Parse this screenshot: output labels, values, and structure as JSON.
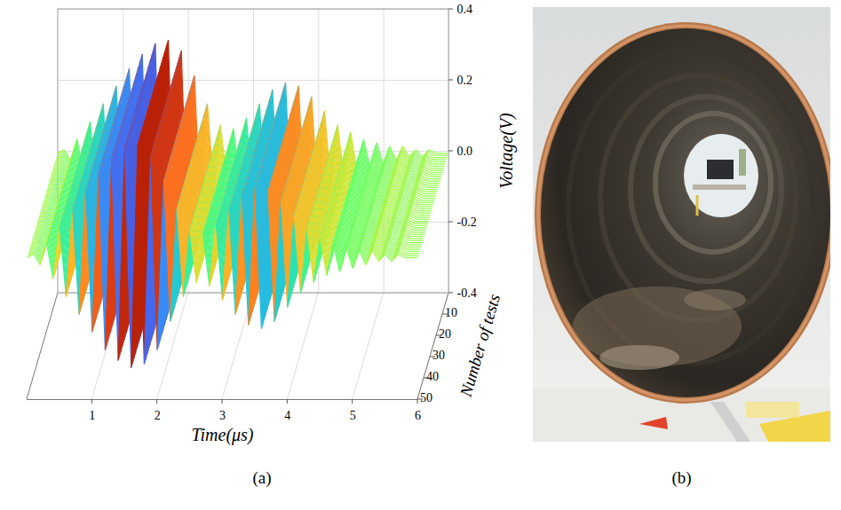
{
  "chart_data": {
    "type": "line",
    "panel_label": "(a)",
    "xlabel": "Time(μs)",
    "ylabel": "Voltage(V)",
    "zlabel": "Number of tests",
    "x": [
      0.0,
      0.1,
      0.2,
      0.3,
      0.4,
      0.5,
      0.6,
      0.7,
      0.8,
      0.9,
      1.0,
      1.1,
      1.2,
      1.3,
      1.4,
      1.5,
      1.6,
      1.7,
      1.8,
      1.9,
      2.0,
      2.1,
      2.2,
      2.3,
      2.4,
      2.5,
      2.6,
      2.7,
      2.8,
      2.9,
      3.0,
      3.1,
      3.2,
      3.3,
      3.4,
      3.5,
      3.6,
      3.7,
      3.8,
      3.9,
      4.0,
      4.1,
      4.2,
      4.3,
      4.4,
      4.5,
      4.6,
      4.7,
      4.8,
      4.9,
      5.0,
      5.1,
      5.2,
      5.3,
      5.4,
      5.5,
      5.6,
      5.7,
      5.8,
      5.9,
      6.0
    ],
    "values": [
      0,
      0.01,
      -0.02,
      0.04,
      -0.06,
      0.09,
      -0.11,
      0.14,
      -0.16,
      0.19,
      -0.21,
      0.24,
      -0.26,
      0.28,
      -0.29,
      0.31,
      -0.31,
      0.32,
      -0.3,
      0.29,
      -0.26,
      0.22,
      -0.18,
      0.14,
      -0.11,
      0.08,
      -0.07,
      0.07,
      -0.08,
      0.1,
      -0.12,
      0.14,
      -0.16,
      0.18,
      -0.19,
      0.2,
      -0.2,
      0.19,
      -0.18,
      0.16,
      -0.14,
      0.12,
      -0.1,
      0.08,
      -0.07,
      0.06,
      -0.05,
      0.04,
      -0.04,
      0.03,
      -0.03,
      0.02,
      -0.02,
      0.02,
      -0.01,
      0.01,
      -0.01,
      0.01,
      0,
      0,
      0
    ],
    "z": [
      1,
      2,
      3,
      4,
      5,
      6,
      7,
      8,
      9,
      10,
      11,
      12,
      13,
      14,
      15,
      16,
      17,
      18,
      19,
      20,
      21,
      22,
      23,
      24,
      25,
      26,
      27,
      28,
      29,
      30,
      31,
      32,
      33,
      34,
      35,
      36,
      37,
      38,
      39,
      40,
      41,
      42,
      43,
      44,
      45,
      46,
      47,
      48,
      49,
      50
    ],
    "xlim": [
      0,
      6
    ],
    "xticks": [
      1,
      2,
      3,
      4,
      5,
      6
    ],
    "ylim": [
      -0.4,
      0.4
    ],
    "yticks": [
      -0.4,
      -0.2,
      {
        "value": 0,
        "label": "0.0"
      },
      0.2,
      0.4
    ],
    "zlim": [
      0,
      50
    ],
    "zticks": [
      10,
      20,
      30,
      40,
      50
    ],
    "grid": true
  },
  "photo": {
    "panel_label": "(b)"
  }
}
